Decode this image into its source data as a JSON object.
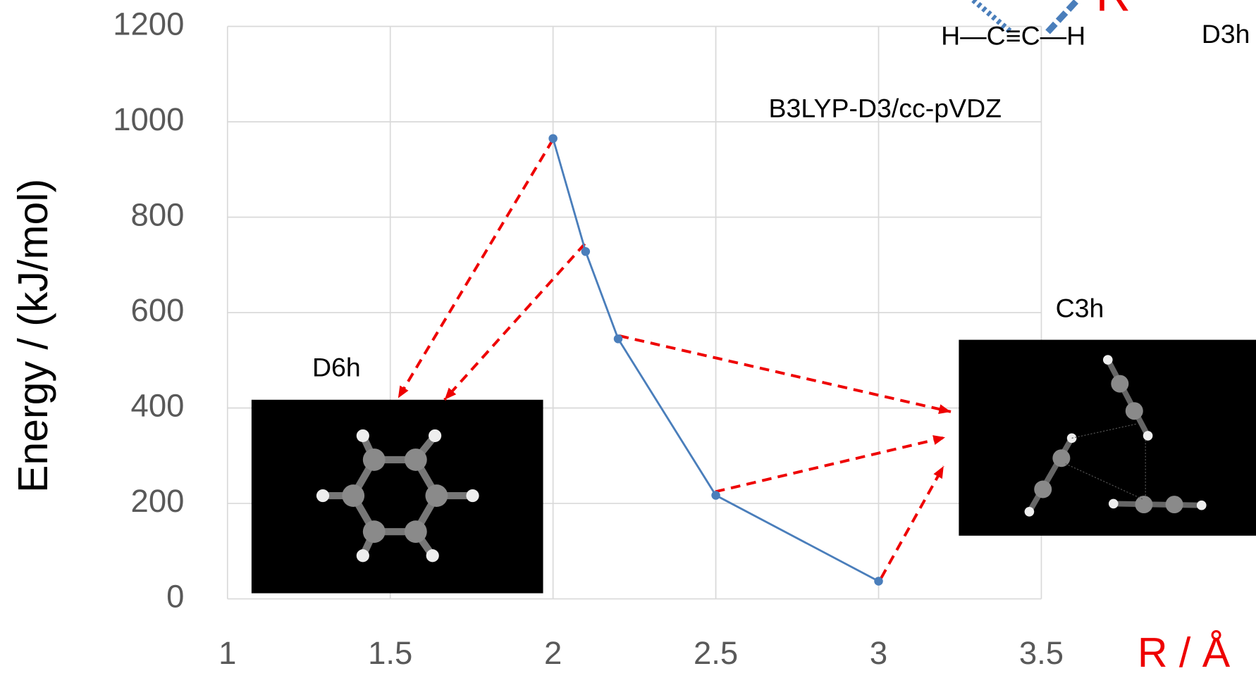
{
  "chart_data": {
    "type": "line",
    "x_label": "R / Å",
    "y_label": "Energy / (kJ/mol)",
    "annotations": [
      "B3LYP-D3/cc-pVDZ",
      "D6h",
      "C3h",
      "D3h",
      "H—C≡C—H",
      "R"
    ],
    "series": [
      {
        "name": "B3LYP-D3/cc-pVDZ",
        "color": "#4a7ebb",
        "x": [
          2,
          2.1,
          2.2,
          2.5,
          3
        ],
        "values": [
          965,
          728,
          545,
          217,
          37
        ]
      }
    ],
    "xlim": [
      1,
      3.5
    ],
    "xticks": [
      1,
      1.5,
      2,
      2.5,
      3,
      3.5
    ],
    "ylim": [
      0,
      1200
    ],
    "yticks": [
      0,
      200,
      400,
      600,
      800,
      1000,
      1200
    ],
    "grid": true
  }
}
